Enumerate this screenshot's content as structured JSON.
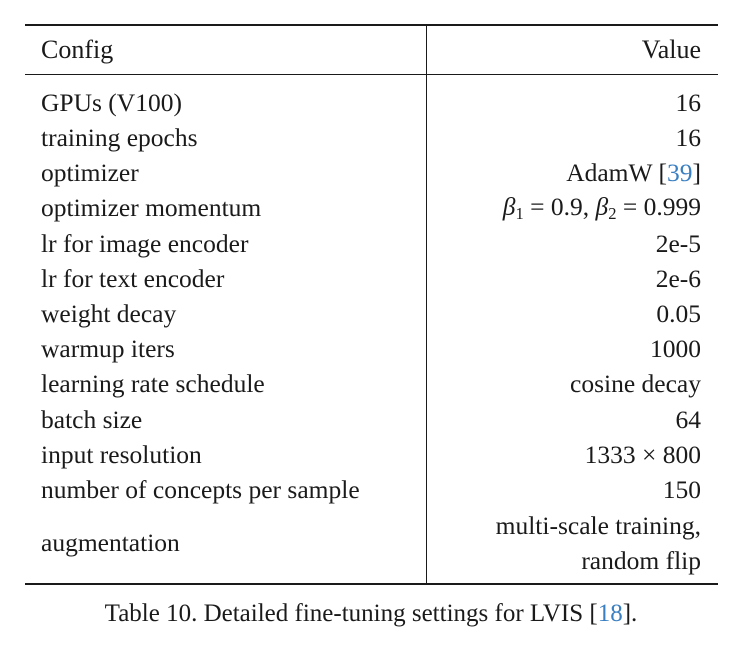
{
  "table": {
    "header": {
      "config": "Config",
      "value": "Value"
    },
    "rows": [
      {
        "config": "GPUs (V100)",
        "value": "16"
      },
      {
        "config": "training epochs",
        "value": "16"
      },
      {
        "config": "optimizer",
        "value_prefix": "AdamW [",
        "value_cite": "39",
        "value_suffix": "]"
      },
      {
        "config": "optimizer momentum",
        "beta1_sym": "β",
        "beta1_sub": "1",
        "beta1_val": " = 0.9, ",
        "beta2_sym": "β",
        "beta2_sub": "2",
        "beta2_val": " = 0.999"
      },
      {
        "config": "lr for image encoder",
        "value": "2e-5"
      },
      {
        "config": "lr for text encoder",
        "value": "2e-6"
      },
      {
        "config": "weight decay",
        "value": "0.05"
      },
      {
        "config": "warmup iters",
        "value": "1000"
      },
      {
        "config": "learning rate schedule",
        "value": "cosine decay"
      },
      {
        "config": "batch size",
        "value": "64"
      },
      {
        "config": "input resolution",
        "value": "1333 × 800"
      },
      {
        "config": "number of concepts per sample",
        "value": "150"
      },
      {
        "config": "augmentation",
        "value_line1": "multi-scale training,",
        "value_line2": "random flip"
      }
    ]
  },
  "caption": {
    "prefix": "Table 10. Detailed fine-tuning settings for LVIS [",
    "cite": "18",
    "suffix": "]."
  }
}
